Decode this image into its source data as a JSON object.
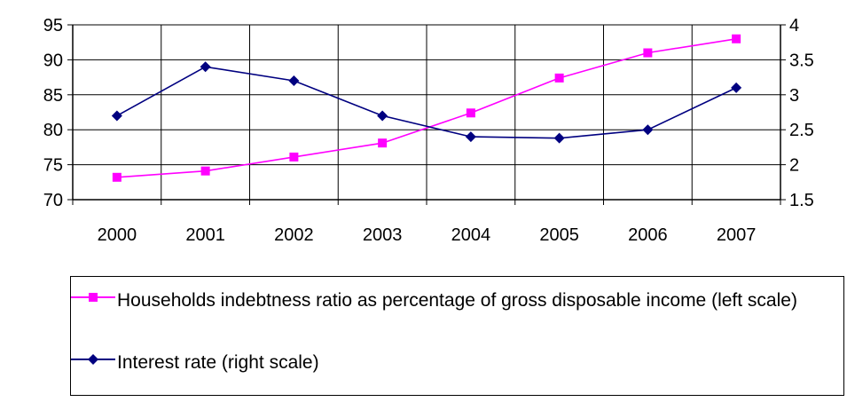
{
  "colors": {
    "series1": "#ff00ff",
    "series2": "#000080"
  },
  "chart_data": {
    "type": "line",
    "x": [
      "2000",
      "2001",
      "2002",
      "2003",
      "2004",
      "2005",
      "2006",
      "2007"
    ],
    "series": [
      {
        "name": "Households indebtness ratio as percentage of gross disposable income (left scale)",
        "axis": "left",
        "marker": "square",
        "values": [
          73.2,
          74.1,
          76.1,
          78.1,
          82.4,
          87.4,
          91.0,
          93.0
        ]
      },
      {
        "name": "Interest rate (right scale)",
        "axis": "right",
        "marker": "diamond",
        "values": [
          2.7,
          3.4,
          3.2,
          2.7,
          2.4,
          2.38,
          2.5,
          3.1
        ]
      }
    ],
    "y_left": {
      "lim": [
        70,
        95
      ],
      "ticks": [
        70,
        75,
        80,
        85,
        90,
        95
      ],
      "tick_labels": [
        "70",
        "75",
        "80",
        "85",
        "90",
        "95"
      ]
    },
    "y_right": {
      "lim": [
        1.5,
        4
      ],
      "ticks": [
        1.5,
        2,
        2.5,
        3,
        3.5,
        4
      ],
      "tick_labels": [
        "1.5",
        "2",
        "2.5",
        "3",
        "3.5",
        "4"
      ]
    },
    "grid": true,
    "legend_position": "bottom"
  }
}
